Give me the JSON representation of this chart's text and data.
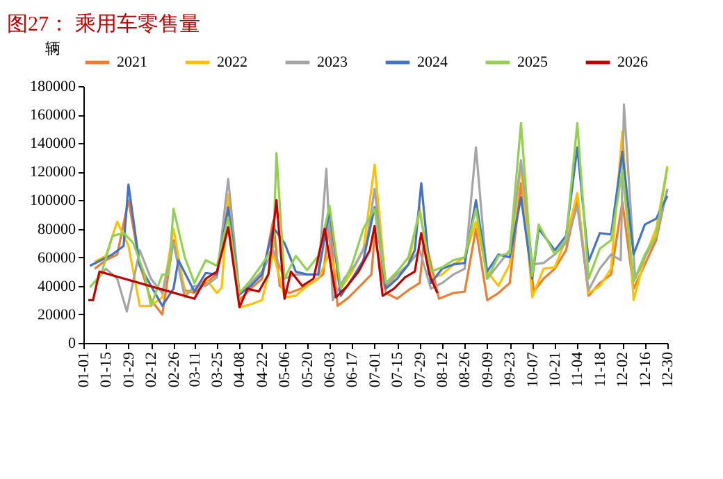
{
  "chart_data": {
    "type": "line",
    "title": "图27：  乘用车零售量",
    "ylabel": "辆",
    "xlim": [
      "--01-01",
      "--12-30"
    ],
    "xticks": [
      {
        "value": "--01-01",
        "label": "01-01"
      },
      {
        "value": "--01-15",
        "label": "01-15"
      },
      {
        "value": "--01-29",
        "label": "01-29"
      },
      {
        "value": "--02-12",
        "label": "02-12"
      },
      {
        "value": "--02-26",
        "label": "02-26"
      },
      {
        "value": "--03-11",
        "label": "03-11"
      },
      {
        "value": "--03-25",
        "label": "03-25"
      },
      {
        "value": "--04-08",
        "label": "04-08"
      },
      {
        "value": "--04-22",
        "label": "04-22"
      },
      {
        "value": "--05-06",
        "label": "05-06"
      },
      {
        "value": "--05-20",
        "label": "05-20"
      },
      {
        "value": "--06-03",
        "label": "06-03"
      },
      {
        "value": "--06-17",
        "label": "06-17"
      },
      {
        "value": "--07-01",
        "label": "07-01"
      },
      {
        "value": "--07-15",
        "label": "07-15"
      },
      {
        "value": "--07-29",
        "label": "07-29"
      },
      {
        "value": "--08-12",
        "label": "08-12"
      },
      {
        "value": "--08-26",
        "label": "08-26"
      },
      {
        "value": "--09-09",
        "label": "09-09"
      },
      {
        "value": "--09-23",
        "label": "09-23"
      },
      {
        "value": "--10-07",
        "label": "10-07"
      },
      {
        "value": "--10-21",
        "label": "10-21"
      },
      {
        "value": "--11-04",
        "label": "11-04"
      },
      {
        "value": "--11-18",
        "label": "11-18"
      },
      {
        "value": "--12-02",
        "label": "12-02"
      },
      {
        "value": "--12-16",
        "label": "12-16"
      },
      {
        "value": "--12-30",
        "label": "12-30"
      }
    ],
    "ylim": [
      0,
      180000
    ],
    "yticks": [
      0,
      20000,
      40000,
      60000,
      80000,
      100000,
      120000,
      140000,
      160000,
      180000
    ],
    "grid": false,
    "legend": "top",
    "marker": "none",
    "line_style": "solid",
    "series": [
      {
        "name": "2021",
        "color": "#ed7d31",
        "x": [
          "--01-08",
          "--01-15",
          "--01-22",
          "--01-29",
          "--02-05",
          "--02-12",
          "--02-19",
          "--02-26",
          "--03-05",
          "--03-11",
          "--03-18",
          "--03-25",
          "--04-01",
          "--04-08",
          "--04-15",
          "--04-22",
          "--04-29",
          "--05-03",
          "--05-09",
          "--05-16",
          "--05-23",
          "--05-30",
          "--06-03",
          "--06-08",
          "--06-15",
          "--06-22",
          "--06-29",
          "--07-01",
          "--07-08",
          "--07-15",
          "--07-22",
          "--07-29",
          "--08-01",
          "--08-10",
          "--08-19",
          "--08-26",
          "--09-02",
          "--09-09",
          "--09-16",
          "--09-23",
          "--09-30",
          "--10-08",
          "--10-14",
          "--10-21",
          "--10-28",
          "--11-04",
          "--11-11",
          "--11-18",
          "--11-25",
          "--12-02",
          "--12-09",
          "--12-16",
          "--12-23",
          "--12-30"
        ],
        "values": [
          52000,
          58000,
          62000,
          100000,
          55000,
          30000,
          20000,
          72000,
          37000,
          35000,
          42000,
          48000,
          98000,
          30000,
          38000,
          45000,
          86000,
          40000,
          35000,
          38000,
          42000,
          48000,
          85000,
          26000,
          32000,
          40000,
          48000,
          75000,
          35000,
          31000,
          37000,
          42000,
          75000,
          31000,
          35000,
          36000,
          80000,
          30000,
          35000,
          42000,
          112000,
          36000,
          45000,
          52000,
          65000,
          100000,
          33000,
          42000,
          48000,
          99000,
          38000,
          55000,
          72000,
          108000
        ]
      },
      {
        "name": "2022",
        "color": "#ffc000",
        "x": [
          "--01-08",
          "--01-15",
          "--01-22",
          "--01-29",
          "--02-05",
          "--02-12",
          "--02-19",
          "--02-26",
          "--03-05",
          "--03-11",
          "--03-18",
          "--03-25",
          "--03-28",
          "--04-01",
          "--04-08",
          "--04-15",
          "--04-22",
          "--04-29",
          "--05-06",
          "--05-13",
          "--05-20",
          "--05-27",
          "--06-03",
          "--06-10",
          "--06-17",
          "--06-24",
          "--07-01",
          "--07-08",
          "--07-15",
          "--07-22",
          "--07-29",
          "--08-05",
          "--08-12",
          "--08-19",
          "--08-26",
          "--09-02",
          "--09-09",
          "--09-16",
          "--09-23",
          "--09-30",
          "--10-07",
          "--10-14",
          "--10-21",
          "--10-28",
          "--11-04",
          "--11-11",
          "--11-18",
          "--11-25",
          "--12-02",
          "--12-09",
          "--12-16",
          "--12-23",
          "--12-30"
        ],
        "values": [
          57000,
          61000,
          85000,
          68000,
          26000,
          26000,
          32000,
          80000,
          35000,
          37000,
          45000,
          35000,
          39000,
          104000,
          25000,
          27000,
          30000,
          63000,
          32000,
          33000,
          40000,
          45000,
          63000,
          38000,
          50000,
          65000,
          125000,
          40000,
          45000,
          55000,
          95000,
          45000,
          48000,
          55000,
          60000,
          85000,
          50000,
          40000,
          55000,
          125000,
          32000,
          52000,
          53000,
          73000,
          105000,
          35000,
          40000,
          52000,
          148000,
          30000,
          60000,
          80000,
          124000
        ]
      },
      {
        "name": "2023",
        "color": "#a5a5a5",
        "x": [
          "--01-08",
          "--01-15",
          "--01-22",
          "--01-28",
          "--02-05",
          "--02-12",
          "--02-19",
          "--02-26",
          "--03-05",
          "--03-11",
          "--03-18",
          "--03-25",
          "--04-01",
          "--04-08",
          "--04-15",
          "--04-22",
          "--04-29",
          "--05-06",
          "--05-13",
          "--05-20",
          "--05-27",
          "--06-01",
          "--06-05",
          "--06-12",
          "--06-19",
          "--06-26",
          "--07-01",
          "--07-08",
          "--07-15",
          "--07-22",
          "--07-29",
          "--08-05",
          "--08-12",
          "--08-19",
          "--08-26",
          "--09-02",
          "--09-09",
          "--09-16",
          "--09-23",
          "--09-30",
          "--10-07",
          "--10-14",
          "--10-21",
          "--10-28",
          "--11-04",
          "--11-11",
          "--11-18",
          "--11-25",
          "--12-01",
          "--12-03",
          "--12-10",
          "--12-16",
          "--12-23",
          "--12-30"
        ],
        "values": [
          42000,
          52000,
          45000,
          22000,
          65000,
          45000,
          35000,
          70000,
          32000,
          40000,
          40000,
          46000,
          115000,
          35000,
          42000,
          50000,
          65000,
          45000,
          48000,
          48000,
          48000,
          122000,
          30000,
          45000,
          55000,
          70000,
          108000,
          40000,
          48000,
          55000,
          65000,
          38000,
          42000,
          48000,
          52000,
          137000,
          45000,
          55000,
          65000,
          128000,
          55000,
          56000,
          62000,
          70000,
          96000,
          37000,
          52000,
          62000,
          58000,
          167000,
          45000,
          60000,
          75000,
          108000
        ]
      },
      {
        "name": "2024",
        "color": "#4472c4",
        "x": [
          "--01-05",
          "--01-12",
          "--01-19",
          "--01-26",
          "--01-29",
          "--02-05",
          "--02-12",
          "--02-19",
          "--02-26",
          "--03-01",
          "--03-11",
          "--03-18",
          "--03-25",
          "--04-01",
          "--04-08",
          "--04-15",
          "--04-22",
          "--04-29",
          "--05-06",
          "--05-13",
          "--05-20",
          "--05-27",
          "--06-03",
          "--06-10",
          "--06-17",
          "--06-24",
          "--07-01",
          "--07-08",
          "--07-15",
          "--07-22",
          "--07-26",
          "--07-30",
          "--08-05",
          "--08-12",
          "--08-19",
          "--08-26",
          "--09-02",
          "--09-09",
          "--09-16",
          "--09-23",
          "--09-30",
          "--10-07",
          "--10-11",
          "--10-21",
          "--10-28",
          "--11-04",
          "--11-11",
          "--11-18",
          "--11-25",
          "--12-02",
          "--12-09",
          "--12-16",
          "--12-23",
          "--12-30"
        ],
        "values": [
          54000,
          58000,
          62000,
          68000,
          111000,
          54000,
          40000,
          26000,
          38000,
          58000,
          36000,
          49000,
          48000,
          95000,
          34000,
          40000,
          48000,
          81000,
          70000,
          50000,
          48000,
          48000,
          93000,
          33000,
          45000,
          58000,
          95000,
          38000,
          45000,
          55000,
          65000,
          112000,
          42000,
          52000,
          55000,
          56000,
          100000,
          50000,
          62000,
          60000,
          102000,
          45000,
          80000,
          65000,
          75000,
          137000,
          57000,
          77000,
          76000,
          134000,
          62000,
          83000,
          87000,
          103000
        ]
      },
      {
        "name": "2025",
        "color": "#92d050",
        "x": [
          "--01-05",
          "--01-12",
          "--01-19",
          "--01-26",
          "--02-01",
          "--02-08",
          "--02-12",
          "--02-19",
          "--02-23",
          "--02-26",
          "--03-05",
          "--03-11",
          "--03-18",
          "--03-25",
          "--04-01",
          "--04-08",
          "--04-15",
          "--04-22",
          "--04-29",
          "--05-01",
          "--05-06",
          "--05-13",
          "--05-20",
          "--05-27",
          "--06-03",
          "--06-10",
          "--06-17",
          "--06-24",
          "--07-01",
          "--07-08",
          "--07-15",
          "--07-22",
          "--07-29",
          "--08-05",
          "--08-12",
          "--08-19",
          "--08-26",
          "--09-02",
          "--09-09",
          "--09-16",
          "--09-23",
          "--09-30",
          "--10-07",
          "--10-11",
          "--10-21",
          "--10-28",
          "--11-04",
          "--11-11",
          "--11-18",
          "--11-25",
          "--12-02",
          "--12-09",
          "--12-16",
          "--12-23",
          "--12-30"
        ],
        "values": [
          39000,
          48000,
          75000,
          77000,
          70000,
          48000,
          26000,
          48000,
          48000,
          94000,
          60000,
          42000,
          58000,
          54000,
          88000,
          35000,
          44000,
          55000,
          67000,
          133000,
          45000,
          61000,
          51000,
          61000,
          96000,
          38000,
          55000,
          80000,
          94000,
          42000,
          50000,
          60000,
          92000,
          50000,
          53000,
          58000,
          60000,
          94000,
          45000,
          61000,
          63000,
          154000,
          47000,
          83000,
          62000,
          73000,
          154000,
          45000,
          66000,
          72000,
          121000,
          43000,
          62000,
          75000,
          123000
        ]
      },
      {
        "name": "2026",
        "color": "#c00000",
        "x": [
          "--01-04",
          "--01-07",
          "--01-11",
          "--03-11",
          "--03-18",
          "--03-25",
          "--04-01",
          "--04-08",
          "--04-13",
          "--04-20",
          "--04-26",
          "--05-01",
          "--05-06",
          "--05-10",
          "--05-17",
          "--05-24",
          "--05-31",
          "--06-07",
          "--06-14",
          "--06-21",
          "--06-28",
          "--07-01",
          "--07-06",
          "--07-13",
          "--07-20",
          "--07-26",
          "--07-30",
          "--08-04",
          "--08-09"
        ],
        "values": [
          30000,
          30000,
          50000,
          31000,
          45000,
          50000,
          81000,
          25000,
          38000,
          36000,
          48000,
          100000,
          31000,
          50000,
          40000,
          45000,
          80000,
          32000,
          40000,
          50000,
          65000,
          82000,
          33000,
          38000,
          46000,
          50000,
          77000,
          48000,
          35000
        ]
      }
    ]
  }
}
